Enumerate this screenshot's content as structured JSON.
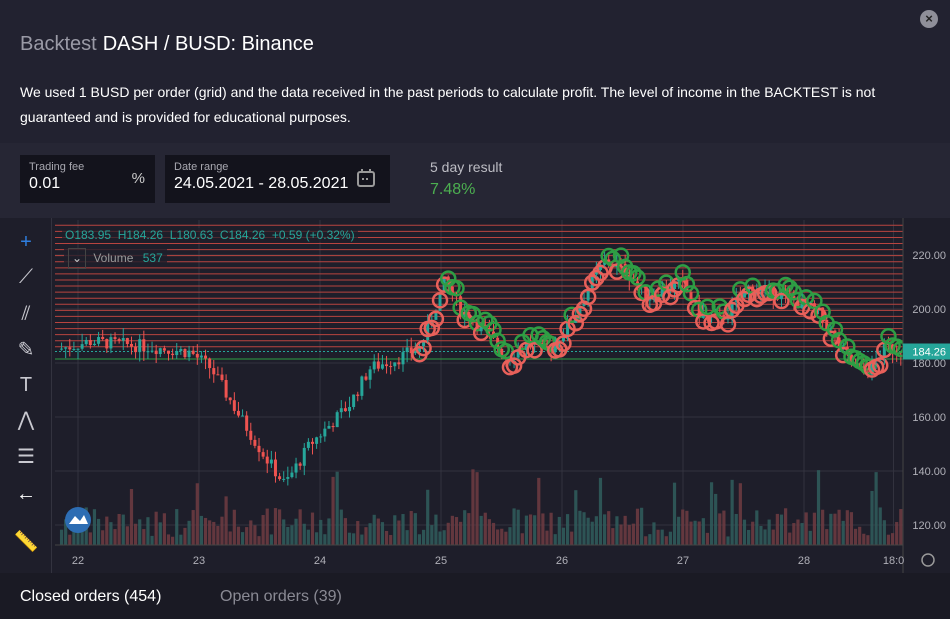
{
  "header": {
    "section": "Backtest",
    "pair": "DASH / BUSD: Binance",
    "close_icon": "close-icon"
  },
  "description": "We used 1 BUSD per order (grid) and the data received in the past periods to calculate profit. The level of income in the BACKTEST is not guaranteed and is provided for educational purposes.",
  "trading_fee": {
    "label": "Trading fee",
    "value": "0.01",
    "unit": "%"
  },
  "date_range": {
    "label": "Date range",
    "value": "24.05.2021 - 28.05.2021"
  },
  "result": {
    "label": "5 day result",
    "value": "7.48%",
    "color": "#4caf50"
  },
  "legend": {
    "o": "O183.95",
    "h": "H184.26",
    "l": "L180.63",
    "c": "C184.26",
    "change": "+0.59 (+0.32%)",
    "volume_label": "Volume",
    "volume_value": "537"
  },
  "tabs": {
    "closed": "Closed orders (454)",
    "open": "Open orders (39)"
  },
  "chart_data": {
    "type": "candlestick",
    "y_ticks": [
      "220.00",
      "200.00",
      "180.00",
      "160.00",
      "140.00",
      "120.00"
    ],
    "y_tick_values": [
      220,
      200,
      180,
      160,
      140,
      120
    ],
    "ylim": [
      112,
      236
    ],
    "x_ticks": [
      "22",
      "23",
      "24",
      "25",
      "26",
      "27",
      "28",
      "18:0"
    ],
    "x_tick_days": [
      22,
      23,
      24,
      25,
      26,
      27,
      28,
      28.74
    ],
    "last_price": "184.26",
    "price_path": [
      [
        21.83,
        185
      ],
      [
        22.1,
        188
      ],
      [
        22.6,
        186
      ],
      [
        22.93,
        184
      ],
      [
        23.1,
        178
      ],
      [
        23.34,
        160
      ],
      [
        23.55,
        145
      ],
      [
        23.71,
        135
      ],
      [
        23.92,
        150
      ],
      [
        24.08,
        157
      ],
      [
        24.25,
        165
      ],
      [
        24.41,
        178
      ],
      [
        24.66,
        182
      ],
      [
        24.83,
        186
      ],
      [
        25.03,
        210
      ],
      [
        25.16,
        200
      ],
      [
        25.4,
        190
      ],
      [
        25.53,
        182
      ],
      [
        25.74,
        188
      ],
      [
        25.86,
        183
      ],
      [
        26.07,
        195
      ],
      [
        26.24,
        210
      ],
      [
        26.36,
        218
      ],
      [
        26.53,
        214
      ],
      [
        26.69,
        205
      ],
      [
        26.98,
        210
      ],
      [
        27.14,
        198
      ],
      [
        27.31,
        196
      ],
      [
        27.55,
        208
      ],
      [
        27.76,
        206
      ],
      [
        27.97,
        202
      ],
      [
        28.13,
        198
      ],
      [
        28.26,
        188
      ],
      [
        28.38,
        180
      ],
      [
        28.46,
        176
      ],
      [
        28.55,
        178
      ],
      [
        28.67,
        186
      ],
      [
        28.8,
        184
      ]
    ],
    "colors": {
      "up": "#26a69a",
      "down": "#ef5350",
      "buy": "#2e9e44",
      "sell": "#e8605a"
    }
  }
}
